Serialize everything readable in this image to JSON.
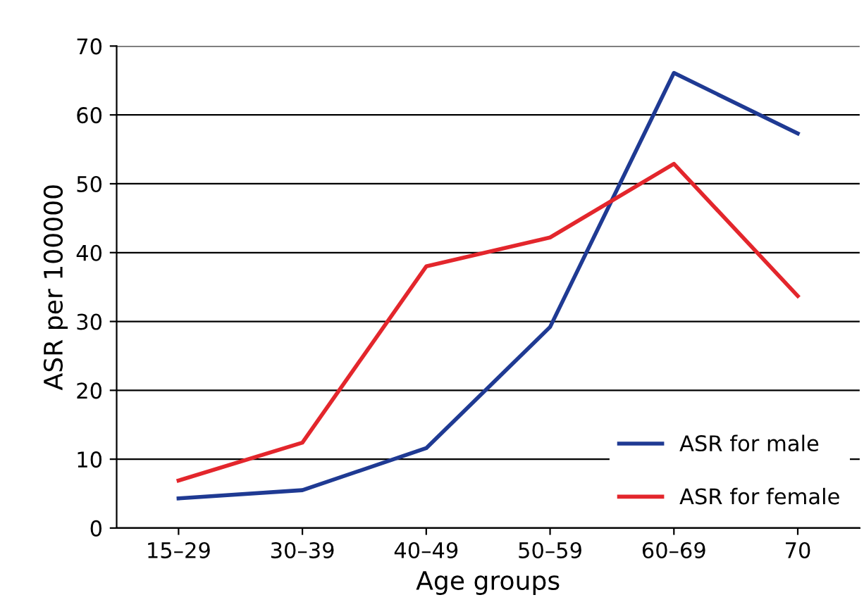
{
  "chart_data": {
    "type": "line",
    "xlabel": "Age groups",
    "ylabel": "ASR per 100000",
    "categories": [
      "15–29",
      "30–39",
      "40–49",
      "50–59",
      "60–69",
      "70"
    ],
    "series": [
      {
        "name": "ASR for male",
        "color": "#1f3a93",
        "values": [
          4.3,
          5.5,
          11.6,
          29.2,
          66.1,
          57.3
        ]
      },
      {
        "name": "ASR for female",
        "color": "#e3262c",
        "values": [
          6.9,
          12.4,
          38.0,
          42.2,
          52.9,
          33.7
        ]
      }
    ],
    "ylim": [
      0,
      70
    ],
    "yticks": [
      0,
      10,
      20,
      30,
      40,
      50,
      60,
      70
    ],
    "grid": "y",
    "legend": "bottom right",
    "marker": "none",
    "line_style": "solid"
  }
}
